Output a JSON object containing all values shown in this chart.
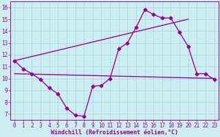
{
  "title": "",
  "xlabel": "Windchill (Refroidissement éolien,°C)",
  "ylabel": "",
  "bg_color": "#cceef2",
  "line_color": "#990099",
  "grid_color": "#aad4da",
  "xlim": [
    -0.5,
    23.5
  ],
  "ylim": [
    6.5,
    16.5
  ],
  "xticks": [
    0,
    1,
    2,
    3,
    4,
    5,
    6,
    7,
    8,
    9,
    10,
    11,
    12,
    13,
    14,
    15,
    16,
    17,
    18,
    19,
    20,
    21,
    22,
    23
  ],
  "yticks": [
    7,
    8,
    9,
    10,
    11,
    12,
    13,
    14,
    15,
    16
  ],
  "series1_x": [
    0,
    1,
    2,
    3,
    4,
    5,
    6,
    7,
    8,
    9,
    10,
    11,
    12,
    13,
    14,
    15,
    16,
    17,
    18,
    19,
    20,
    21,
    22,
    23
  ],
  "series1_y": [
    11.5,
    10.8,
    10.4,
    9.9,
    9.2,
    8.7,
    7.5,
    6.9,
    6.8,
    9.35,
    9.4,
    10.0,
    12.5,
    13.0,
    14.3,
    15.8,
    15.4,
    15.1,
    15.1,
    13.9,
    12.7,
    10.4,
    10.4,
    9.9
  ],
  "series2_x": [
    0,
    23
  ],
  "series2_y": [
    10.4,
    10.0
  ],
  "series3_x": [
    0,
    20
  ],
  "series3_y": [
    11.5,
    15.0
  ],
  "marker": "D",
  "marker_size": 2.5,
  "linewidth": 1.0
}
